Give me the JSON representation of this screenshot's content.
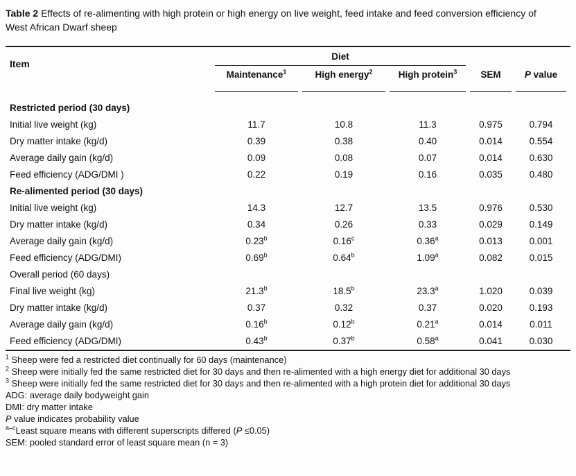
{
  "colors": {
    "background": "#fdfdfd",
    "text": "#111111",
    "rule": "#1a1a1a"
  },
  "caption": {
    "label": "Table 2",
    "text": " Effects of re-alimenting with high protein or high energy on live weight, feed intake and feed conversion efficiency of West African Dwarf sheep"
  },
  "table": {
    "item_header": "Item",
    "diet_header": "Diet",
    "diet_columns": [
      {
        "label": "Maintenance",
        "sup": "1"
      },
      {
        "label": "High energy",
        "sup": "2"
      },
      {
        "label": "High protein",
        "sup": "3"
      }
    ],
    "sem_header": "SEM",
    "p_header": {
      "italic": "P",
      "rest": " value"
    },
    "rows": [
      {
        "type": "section",
        "label": "Restricted period (30 days)",
        "bold": true
      },
      {
        "type": "data",
        "item": "Initial live weight (kg)",
        "cells": [
          [
            "11.7",
            ""
          ],
          [
            "10.8",
            ""
          ],
          [
            "11.3",
            ""
          ]
        ],
        "sem": "0.975",
        "p": "0.794"
      },
      {
        "type": "data",
        "item": "Dry matter intake (kg/d)",
        "cells": [
          [
            "0.39",
            ""
          ],
          [
            "0.38",
            ""
          ],
          [
            "0.40",
            ""
          ]
        ],
        "sem": "0.014",
        "p": "0.554"
      },
      {
        "type": "data",
        "item": "Average daily gain (kg/d)",
        "cells": [
          [
            "0.09",
            ""
          ],
          [
            "0.08",
            ""
          ],
          [
            "0.07",
            ""
          ]
        ],
        "sem": "0.014",
        "p": "0.630"
      },
      {
        "type": "data",
        "item": "Feed efficiency (ADG/DMI )",
        "cells": [
          [
            "0.22",
            ""
          ],
          [
            "0.19",
            ""
          ],
          [
            "0.16",
            ""
          ]
        ],
        "sem": "0.035",
        "p": "0.480"
      },
      {
        "type": "section",
        "label": "Re-alimented period (30 days)",
        "bold": true
      },
      {
        "type": "data",
        "item": "Initial live weight (kg)",
        "cells": [
          [
            "14.3",
            ""
          ],
          [
            "12.7",
            ""
          ],
          [
            "13.5",
            ""
          ]
        ],
        "sem": "0.976",
        "p": "0.530"
      },
      {
        "type": "data",
        "item": "Dry matter intake (kg/d)",
        "cells": [
          [
            "0.34",
            ""
          ],
          [
            "0.26",
            ""
          ],
          [
            "0.33",
            ""
          ]
        ],
        "sem": "0.029",
        "p": "0.149"
      },
      {
        "type": "data",
        "item": "Average daily gain (kg/d)",
        "cells": [
          [
            "0.23",
            "b"
          ],
          [
            "0.16",
            "c"
          ],
          [
            "0.36",
            "a"
          ]
        ],
        "sem": "0.013",
        "p": "0.001"
      },
      {
        "type": "data",
        "item": "Feed efficiency (ADG/DMI)",
        "cells": [
          [
            "0.69",
            "b"
          ],
          [
            "0.64",
            "b"
          ],
          [
            "1.09",
            "a"
          ]
        ],
        "sem": "0.082",
        "p": "0.015"
      },
      {
        "type": "section",
        "label": "Overall period (60 days)",
        "bold": false
      },
      {
        "type": "data",
        "item": "Final live weight (kg)",
        "cells": [
          [
            "21.3",
            "b"
          ],
          [
            "18.5",
            "b"
          ],
          [
            "23.3",
            "a"
          ]
        ],
        "sem": "1.020",
        "p": "0.039"
      },
      {
        "type": "data",
        "item": "Dry matter intake (kg/d)",
        "cells": [
          [
            "0.37",
            ""
          ],
          [
            "0.32",
            ""
          ],
          [
            "0.37",
            ""
          ]
        ],
        "sem": "0.020",
        "p": "0.193"
      },
      {
        "type": "data",
        "item": "Average daily gain (kg/d)",
        "cells": [
          [
            "0.16",
            "b"
          ],
          [
            "0.12",
            "b"
          ],
          [
            "0.21",
            "a"
          ]
        ],
        "sem": "0.014",
        "p": "0.011"
      },
      {
        "type": "data",
        "item": "Feed efficiency (ADG/DMI)",
        "cells": [
          [
            "0.43",
            "b"
          ],
          [
            "0.37",
            "b"
          ],
          [
            "0.58",
            "a"
          ]
        ],
        "sem": "0.041",
        "p": "0.030"
      }
    ]
  },
  "footnotes": [
    {
      "segments": [
        {
          "fmt": "sup",
          "text": "1"
        },
        {
          "fmt": "",
          "text": " Sheep were fed a restricted diet continually for 60 days (maintenance)"
        }
      ]
    },
    {
      "segments": [
        {
          "fmt": "sup",
          "text": "2"
        },
        {
          "fmt": "",
          "text": " Sheep were initially fed the same restricted diet for 30 days and then re-alimented with a high energy diet for additional 30 days"
        }
      ]
    },
    {
      "segments": [
        {
          "fmt": "sup",
          "text": "3"
        },
        {
          "fmt": "",
          "text": " Sheep were initially fed the same restricted diet for 30 days and then re-alimented with a high protein diet for additional 30 days"
        }
      ]
    },
    {
      "segments": [
        {
          "fmt": "",
          "text": "ADG: average daily bodyweight gain"
        }
      ]
    },
    {
      "segments": [
        {
          "fmt": "",
          "text": "DMI: dry matter intake"
        }
      ]
    },
    {
      "segments": [
        {
          "fmt": "i",
          "text": "P"
        },
        {
          "fmt": "",
          "text": " value indicates probability value"
        }
      ]
    },
    {
      "segments": [
        {
          "fmt": "sup",
          "text": "a–c"
        },
        {
          "fmt": "",
          "text": "Least square means with different superscripts differed ("
        },
        {
          "fmt": "i",
          "text": "P"
        },
        {
          "fmt": "",
          "text": " ≤0.05)"
        }
      ]
    },
    {
      "segments": [
        {
          "fmt": "",
          "text": "SEM: pooled standard error of least square mean (n = 3)"
        }
      ]
    }
  ]
}
